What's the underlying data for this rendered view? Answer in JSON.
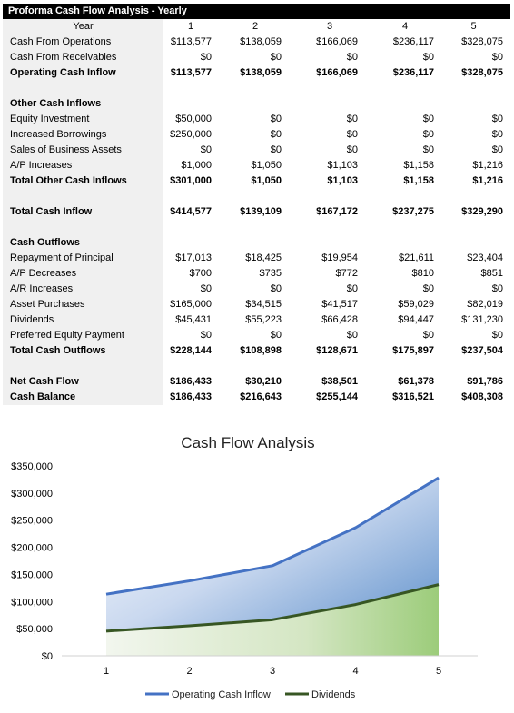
{
  "sheet": {
    "title": "Proforma Cash Flow Analysis - Yearly",
    "year_label": "Year",
    "years": [
      "1",
      "2",
      "3",
      "4",
      "5"
    ],
    "rows": [
      {
        "label": "Cash From Operations",
        "bold": false,
        "values": [
          "$113,577",
          "$138,059",
          "$166,069",
          "$236,117",
          "$328,075"
        ]
      },
      {
        "label": "Cash From Receivables",
        "bold": false,
        "values": [
          "$0",
          "$0",
          "$0",
          "$0",
          "$0"
        ]
      },
      {
        "label": "Operating Cash Inflow",
        "bold": true,
        "values": [
          "$113,577",
          "$138,059",
          "$166,069",
          "$236,117",
          "$328,075"
        ]
      },
      {
        "label": "",
        "bold": false,
        "values": []
      },
      {
        "label": "Other Cash Inflows",
        "bold": true,
        "values": []
      },
      {
        "label": "Equity Investment",
        "bold": false,
        "values": [
          "$50,000",
          "$0",
          "$0",
          "$0",
          "$0"
        ]
      },
      {
        "label": "Increased Borrowings",
        "bold": false,
        "values": [
          "$250,000",
          "$0",
          "$0",
          "$0",
          "$0"
        ]
      },
      {
        "label": "Sales of Business Assets",
        "bold": false,
        "values": [
          "$0",
          "$0",
          "$0",
          "$0",
          "$0"
        ]
      },
      {
        "label": "A/P Increases",
        "bold": false,
        "values": [
          "$1,000",
          "$1,050",
          "$1,103",
          "$1,158",
          "$1,216"
        ]
      },
      {
        "label": "Total Other Cash Inflows",
        "bold": true,
        "values": [
          "$301,000",
          "$1,050",
          "$1,103",
          "$1,158",
          "$1,216"
        ]
      },
      {
        "label": "",
        "bold": false,
        "values": []
      },
      {
        "label": "Total Cash Inflow",
        "bold": true,
        "values": [
          "$414,577",
          "$139,109",
          "$167,172",
          "$237,275",
          "$329,290"
        ]
      },
      {
        "label": "",
        "bold": false,
        "values": []
      },
      {
        "label": "Cash Outflows",
        "bold": true,
        "values": []
      },
      {
        "label": "Repayment of Principal",
        "bold": false,
        "values": [
          "$17,013",
          "$18,425",
          "$19,954",
          "$21,611",
          "$23,404"
        ]
      },
      {
        "label": "A/P Decreases",
        "bold": false,
        "values": [
          "$700",
          "$735",
          "$772",
          "$810",
          "$851"
        ]
      },
      {
        "label": "A/R Increases",
        "bold": false,
        "values": [
          "$0",
          "$0",
          "$0",
          "$0",
          "$0"
        ]
      },
      {
        "label": "Asset Purchases",
        "bold": false,
        "values": [
          "$165,000",
          "$34,515",
          "$41,517",
          "$59,029",
          "$82,019"
        ]
      },
      {
        "label": "Dividends",
        "bold": false,
        "values": [
          "$45,431",
          "$55,223",
          "$66,428",
          "$94,447",
          "$131,230"
        ]
      },
      {
        "label": "Preferred Equity Payment",
        "bold": false,
        "values": [
          "$0",
          "$0",
          "$0",
          "$0",
          "$0"
        ]
      },
      {
        "label": "Total Cash Outflows",
        "bold": true,
        "values": [
          "$228,144",
          "$108,898",
          "$128,671",
          "$175,897",
          "$237,504"
        ]
      },
      {
        "label": "",
        "bold": false,
        "values": []
      },
      {
        "label": "Net Cash Flow",
        "bold": true,
        "values": [
          "$186,433",
          "$30,210",
          "$38,501",
          "$61,378",
          "$91,786"
        ]
      },
      {
        "label": "Cash Balance",
        "bold": true,
        "values": [
          "$186,433",
          "$216,643",
          "$255,144",
          "$316,521",
          "$408,308"
        ]
      }
    ]
  },
  "chart_data": {
    "type": "area",
    "title": "Cash Flow Analysis",
    "categories": [
      "1",
      "2",
      "3",
      "4",
      "5"
    ],
    "ylim": [
      0,
      350000
    ],
    "yticks": [
      0,
      50000,
      100000,
      150000,
      200000,
      250000,
      300000,
      350000
    ],
    "ytick_labels": [
      "$0",
      "$50,000",
      "$100,000",
      "$150,000",
      "$200,000",
      "$250,000",
      "$300,000",
      "$350,000"
    ],
    "series": [
      {
        "name": "Operating Cash Inflow",
        "values": [
          113577,
          138059,
          166069,
          236117,
          328075
        ],
        "color": "#4472c4"
      },
      {
        "name": "Dividends",
        "values": [
          45431,
          55223,
          66428,
          94447,
          131230
        ],
        "color": "#375623"
      }
    ],
    "legend": "bottom",
    "grid": false
  }
}
